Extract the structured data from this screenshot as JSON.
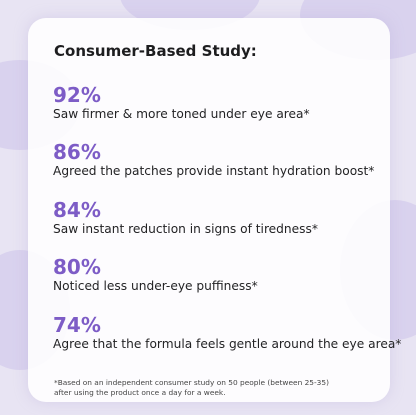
{
  "title": "Consumer-Based Study:",
  "stats": [
    {
      "value": "92%",
      "text": "Saw firmer & more toned under eye area*"
    },
    {
      "value": "86%",
      "text": "Agreed the patches provide instant hydration boost*"
    },
    {
      "value": "84%",
      "text": "Saw instant reduction in signs of tiredness*"
    },
    {
      "value": "80%",
      "text": "Noticed less under-eye puffiness*"
    },
    {
      "value": "74%",
      "text": "Agree that the formula feels gentle around the eye area*"
    }
  ],
  "footnote": [
    "*Based on an independent consumer study on 50 people (between 25-35)",
    "after using the product once a day for a week."
  ]
}
